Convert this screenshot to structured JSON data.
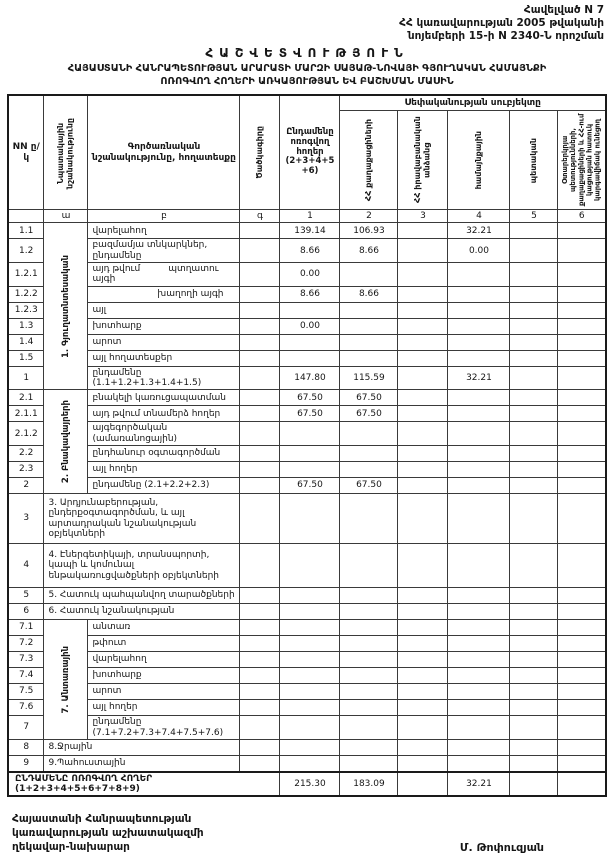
{
  "page": {
    "appendix_lines": [
      "Հավելված N 7",
      "ՀՀ կառավարության 2005 թվականի",
      "նոյեմբերի 15-ի N 2340-Ն որոշման"
    ],
    "title": "ՀԱՇՎԵՏՎՈՒԹՅՈՒՆ",
    "subtitle_line1": "ՀԱՅԱՍՏԱՆԻ ՀԱՆՐԱՊԵՏՈՒԹՅԱՆ ԱՐԱՐԱՏԻ ՄԱՐԶԻ ՍԱՅԱԹ-ՆՈՎԱՅԻ ԳՅՈՒՂԱԿԱՆ ՀԱՄԱՅՆՔԻ",
    "subtitle_line2": "ՈՌՈԳՎՈՂ ՀՈՂԵՐԻ ԱՌԿԱՅՈՒԹՅԱՆ ԵՎ ԲԱՇԽՄԱՆ ՄԱՍԻՆ"
  },
  "table": {
    "headers": {
      "nn": "NN ը/կ",
      "purpose": "Նպատակային նշանակությունը",
      "functional": "Գործառնական նշանակությունը, հողատեսքը",
      "code": "Ծածկագիրը",
      "total_irrigated": "Ընդամենը ոռոգվող հողեր (2+3+4+5+6)",
      "ownership_group": "Սեփականության սուբյեկտը",
      "own_citizens": "ՀՀ քաղաքացիների",
      "own_legal": "ՀՀ իրավաբանական անձանց",
      "own_community": "համայնքային",
      "own_state": "պետական",
      "own_foreign": "Օտարերկրյա պետությունների, քաղաքացիների և ՀՀ-ում կացության հատուկ կարգավիճակ ունեցող",
      "index_row": [
        "ա",
        "բ",
        "գ",
        "1",
        "2",
        "3",
        "4",
        "5",
        "6"
      ]
    },
    "rows": [
      {
        "nn": "1.1",
        "section": {
          "label": "1. Գյուղատնտեսական",
          "rows": 9
        },
        "label": "վարելահող",
        "values": [
          "139.14",
          "106.93",
          "",
          "32.21",
          "",
          ""
        ]
      },
      {
        "nn": "1.2",
        "label": "բազմամյա տնկարկներ, ընդամենը",
        "values": [
          "8.66",
          "8.66",
          "",
          "0.00",
          "",
          ""
        ]
      },
      {
        "nn": "1.2.1",
        "prefix": "այդ թվում",
        "label": "պտղատու այգի",
        "values": [
          "0.00",
          "",
          "",
          "",
          "",
          ""
        ]
      },
      {
        "nn": "1.2.2",
        "indent": true,
        "label": "խաղողի այգի",
        "values": [
          "8.66",
          "8.66",
          "",
          "",
          "",
          ""
        ]
      },
      {
        "nn": "1.2.3",
        "label": "այլ",
        "values": [
          "",
          "",
          "",
          "",
          "",
          ""
        ]
      },
      {
        "nn": "1.3",
        "label": "խոտհարք",
        "values": [
          "0.00",
          "",
          "",
          "",
          "",
          ""
        ]
      },
      {
        "nn": "1.4",
        "label": "արոտ",
        "values": [
          "",
          "",
          "",
          "",
          "",
          ""
        ]
      },
      {
        "nn": "1.5",
        "label": "այլ հողատեսքեր",
        "values": [
          "",
          "",
          "",
          "",
          "",
          ""
        ]
      },
      {
        "nn": "1",
        "label": "ընդամենը (1.1+1.2+1.3+1.4+1.5)",
        "values": [
          "147.80",
          "115.59",
          "",
          "32.21",
          "",
          ""
        ]
      },
      {
        "nn": "2.1",
        "section": {
          "label": "2. Բնակավայրերի",
          "rows": 6
        },
        "label": "բնակելի կառուցապատման",
        "values": [
          "67.50",
          "67.50",
          "",
          "",
          "",
          ""
        ]
      },
      {
        "nn": "2.1.1",
        "label": "այդ թվում տնամերձ հողեր",
        "values": [
          "67.50",
          "67.50",
          "",
          "",
          "",
          ""
        ]
      },
      {
        "nn": "2.1.2",
        "label": "այգեգործական (ամառանոցային)",
        "values": [
          "",
          "",
          "",
          "",
          "",
          ""
        ]
      },
      {
        "nn": "2.2",
        "label": "ընդհանուր օգտագործման",
        "values": [
          "",
          "",
          "",
          "",
          "",
          ""
        ]
      },
      {
        "nn": "2.3",
        "label": "այլ հողեր",
        "values": [
          "",
          "",
          "",
          "",
          "",
          ""
        ]
      },
      {
        "nn": "2",
        "label": "ընդամենը (2.1+2.2+2.3)",
        "values": [
          "67.50",
          "67.50",
          "",
          "",
          "",
          ""
        ]
      },
      {
        "nn": "3",
        "merged": true,
        "label": "3. Արդյունաբերության, ընդերքօգտագործման, և այլ արտադրական նշանակության օբյեկտների",
        "values": [
          "",
          "",
          "",
          "",
          "",
          ""
        ]
      },
      {
        "nn": "4",
        "merged": true,
        "label": "4. Էներգետիկայի, տրանսպորտի, կապի և կոմունալ ենթակառուցվածքների օբյեկտների",
        "values": [
          "",
          "",
          "",
          "",
          "",
          ""
        ]
      },
      {
        "nn": "5",
        "merged": true,
        "label": "5. Հատուկ պահպանվող տարածքների",
        "values": [
          "",
          "",
          "",
          "",
          "",
          ""
        ]
      },
      {
        "nn": "6",
        "merged": true,
        "label": "6. Հատուկ նշանակության",
        "values": [
          "",
          "",
          "",
          "",
          "",
          ""
        ]
      },
      {
        "nn": "7.1",
        "section": {
          "label": "7. Անտառային",
          "rows": 7
        },
        "label": "անտառ",
        "values": [
          "",
          "",
          "",
          "",
          "",
          ""
        ]
      },
      {
        "nn": "7.2",
        "label": "թփուտ",
        "values": [
          "",
          "",
          "",
          "",
          "",
          ""
        ]
      },
      {
        "nn": "7.3",
        "label": "վարելահող",
        "values": [
          "",
          "",
          "",
          "",
          "",
          ""
        ]
      },
      {
        "nn": "7.4",
        "label": "խոտհարք",
        "values": [
          "",
          "",
          "",
          "",
          "",
          ""
        ]
      },
      {
        "nn": "7.5",
        "label": "արոտ",
        "values": [
          "",
          "",
          "",
          "",
          "",
          ""
        ]
      },
      {
        "nn": "7.6",
        "label": "այլ հողեր",
        "values": [
          "",
          "",
          "",
          "",
          "",
          ""
        ]
      },
      {
        "nn": "7",
        "label": "ընդամենը (7.1+7.2+7.3+7.4+7.5+7.6)",
        "values": [
          "",
          "",
          "",
          "",
          "",
          ""
        ]
      },
      {
        "nn": "8",
        "merged": true,
        "label": "8.Ջրային",
        "values": [
          "",
          "",
          "",
          "",
          "",
          ""
        ]
      },
      {
        "nn": "9",
        "merged": true,
        "label": "9.Պահուստային",
        "values": [
          "",
          "",
          "",
          "",
          "",
          ""
        ]
      }
    ],
    "total": {
      "label": "ԸՆԴԱՄԵՆԸ ՈՌՈԳՎՈՂ ՀՈՂԵՐ (1+2+3+4+5+6+7+8+9)",
      "values": [
        "215.30",
        "183.09",
        "",
        "32.21",
        "",
        ""
      ]
    }
  },
  "footer": {
    "left_lines": [
      "Հայաստանի Հանրապետության",
      "կառավարության աշխատակազմի",
      "ղեկավար-նախարար"
    ],
    "signature": "Մ. Թոփուզյան"
  }
}
